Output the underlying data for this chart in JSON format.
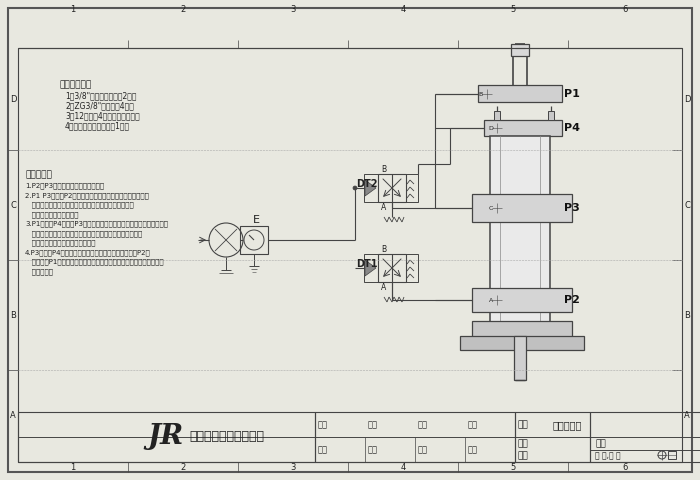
{
  "title": "气路连接图",
  "company_jr": "JR",
  "company_name": "台湾玖容实业有限公司",
  "bg_color": "#e8e8e0",
  "inner_bg": "#f8f8f5",
  "line_color": "#444444",
  "text_color": "#222222",
  "parts_title": "增压缸配件：",
  "parts": [
    "1、3/8\"二位五通电磁阀2只；",
    "2、ZG3/8\"快速接头4个；",
    "3、12厘气管4根（长度适中）；",
    "4、空气处理组合三联件1只；"
  ],
  "action_title": "动作程序：",
  "actions": [
    "1.P2、P3通气，此时缸处于回升状态",
    "2.P1 P3通气，P2排气，压缩空气作用在储油筒内的液压油",
    "   表面，液压油驱动预压腔活塞位移，并使预压腔活塞杆",
    "   轴端的模具抵碰到工件；",
    "3.P1断气、P4通气、P3排气，压缩空气作用在增压活塞作位移去挤压",
    "   预压腔的液压油，使液压油膨胀，从而使预压活塞杆轴端的",
    "   模具保持高压力去挤压成型工作。",
    "4.P3通气、P4排气，增压活塞回升；增压活塞到位后，P2气",
    "   口进气，P1排气预压活塞回位，液压油回到储油筒内，此时一个动作",
    "   循环完成！"
  ],
  "name_label": "名称",
  "material_label": "材料",
  "design_label": "设计",
  "approve_label": "批准",
  "drawing_label": "图号",
  "qty_label": "数量",
  "ratio_label": "比例",
  "version_label": "板本",
  "review_label": "审核",
  "date_label": "日期",
  "vendor_label": "厂商",
  "pages_label": "共 页,第 页",
  "view_label": "视角"
}
